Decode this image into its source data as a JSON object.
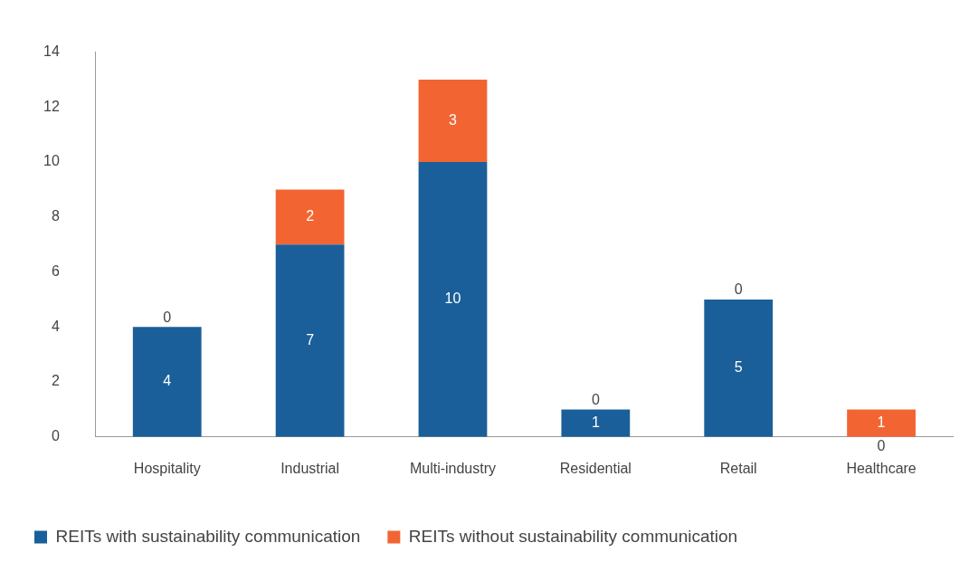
{
  "chart_data": {
    "type": "bar",
    "stacked": true,
    "categories": [
      "Hospitality",
      "Industrial",
      "Multi-industry",
      "Residential",
      "Retail",
      "Healthcare"
    ],
    "series": [
      {
        "name": "REITs with sustainability communication",
        "color": "#1a5f99",
        "values": [
          4,
          7,
          10,
          1,
          5,
          0
        ]
      },
      {
        "name": "REITs without sustainability communication",
        "color": "#f26532",
        "values": [
          0,
          2,
          3,
          0,
          0,
          1
        ]
      }
    ],
    "ylim": [
      0,
      14
    ],
    "yticks": [
      0,
      2,
      4,
      6,
      8,
      10,
      12,
      14
    ],
    "grid": false,
    "legend": "bottom",
    "data_labels": true
  }
}
